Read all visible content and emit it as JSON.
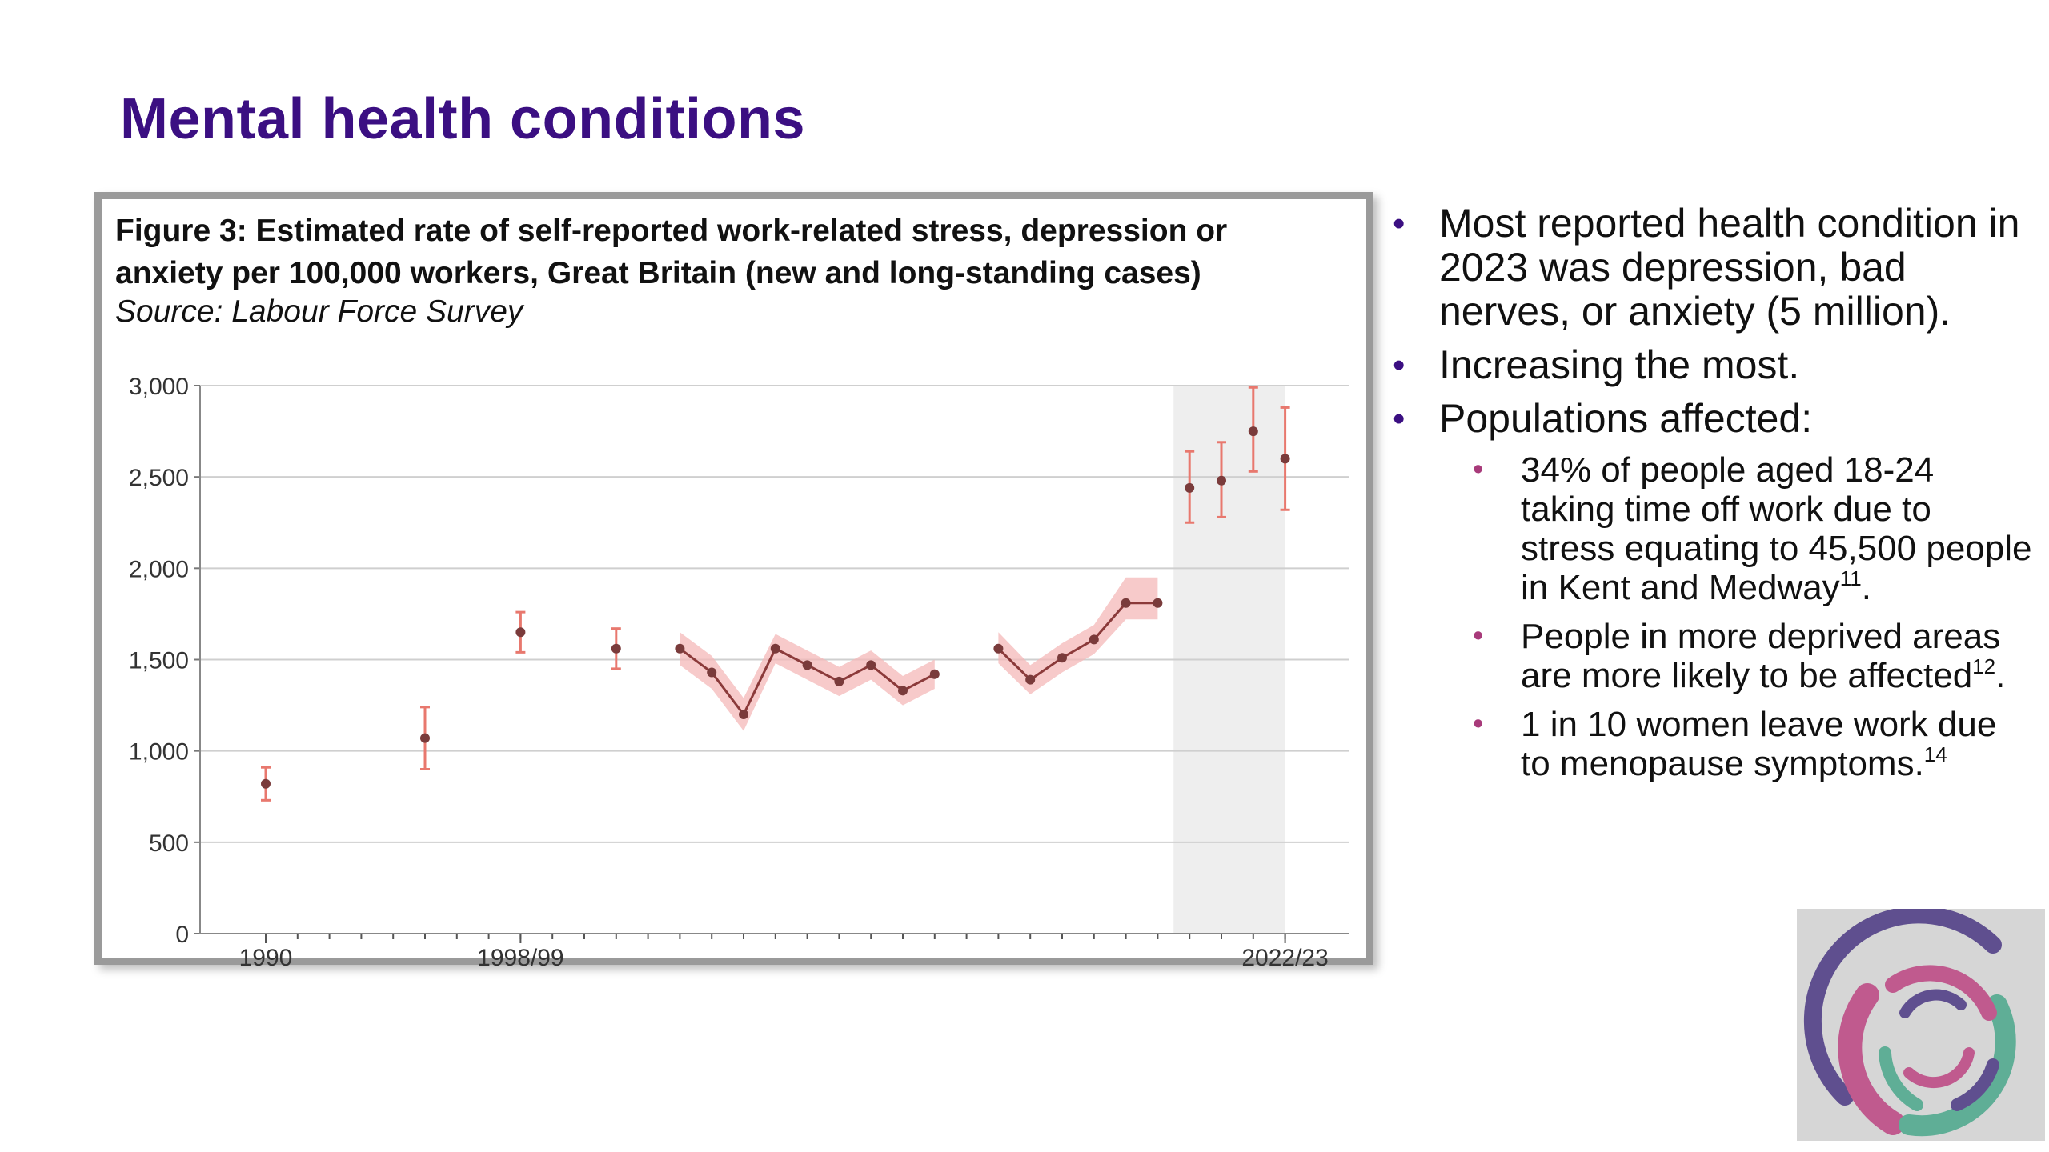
{
  "slide": {
    "title": "Mental health conditions"
  },
  "figure": {
    "title": "Figure 3: Estimated rate of self-reported work-related stress, depression or anxiety per 100,000 workers, Great Britain (new and long-standing cases)",
    "source": "Source: Labour Force Survey"
  },
  "bullets": {
    "items": [
      {
        "text": "Most reported health condition in 2023 was depression, bad nerves, or anxiety (5 million)."
      },
      {
        "text": "Increasing the most."
      },
      {
        "text": "Populations affected:"
      }
    ],
    "sub_items": [
      {
        "text": "34% of people aged 18-24 taking time off work due to stress equating to 45,500 people in Kent and Medway",
        "sup": "11",
        "tail": "."
      },
      {
        "text": "People in more deprived areas are more likely to be affected",
        "sup": "12",
        "tail": "."
      },
      {
        "text": "1 in 10 women leave work due to menopause symptoms.",
        "sup": "14",
        "tail": ""
      }
    ]
  },
  "chart_data": {
    "type": "line",
    "title": "Figure 3: Estimated rate of self-reported work-related stress, depression or anxiety per 100,000 workers, Great Britain (new and long-standing cases)",
    "xlabel": "",
    "ylabel": "",
    "ylim": [
      0,
      3000
    ],
    "yticks": [
      0,
      500,
      1000,
      1500,
      2000,
      2500,
      3000
    ],
    "ytick_labels": [
      "0",
      "500",
      "1,000",
      "1,500",
      "2,000",
      "2,500",
      "3,000"
    ],
    "xlim": [
      1989,
      2024
    ],
    "xtick_labels": [
      {
        "year": 1990,
        "label": "1990"
      },
      {
        "year": 1998,
        "label": "1998/99"
      },
      {
        "year": 2022,
        "label": "2022/23"
      }
    ],
    "minor_ticks_from": 1991,
    "minor_ticks_to": 2022,
    "grid": true,
    "shaded_period": [
      2019,
      2022
    ],
    "colors": {
      "line": "#8b3a3a",
      "band": "#f4b8b8",
      "error": "#e8786e",
      "marker": "#7a3b3b",
      "shade": "#eeeeee",
      "grid": "#cfcfcf"
    },
    "isolated_points": [
      {
        "year": 1990,
        "value": 820,
        "low": 730,
        "high": 910
      },
      {
        "year": 1995,
        "value": 1070,
        "low": 900,
        "high": 1240
      },
      {
        "year": 1998,
        "value": 1650,
        "low": 1540,
        "high": 1760
      },
      {
        "year": 2001,
        "value": 1560,
        "low": 1450,
        "high": 1670
      }
    ],
    "series": [
      {
        "points": [
          {
            "year": 2003,
            "value": 1560,
            "low": 1470,
            "high": 1650
          },
          {
            "year": 2004,
            "value": 1430,
            "low": 1340,
            "high": 1520
          },
          {
            "year": 2005,
            "value": 1200,
            "low": 1110,
            "high": 1290
          },
          {
            "year": 2006,
            "value": 1560,
            "low": 1480,
            "high": 1640
          },
          {
            "year": 2007,
            "value": 1470,
            "low": 1390,
            "high": 1550
          },
          {
            "year": 2008,
            "value": 1380,
            "low": 1300,
            "high": 1460
          },
          {
            "year": 2009,
            "value": 1470,
            "low": 1390,
            "high": 1550
          },
          {
            "year": 2010,
            "value": 1330,
            "low": 1250,
            "high": 1410
          },
          {
            "year": 2011,
            "value": 1420,
            "low": 1340,
            "high": 1500
          }
        ]
      },
      {
        "points": [
          {
            "year": 2013,
            "value": 1560,
            "low": 1480,
            "high": 1650
          },
          {
            "year": 2014,
            "value": 1390,
            "low": 1310,
            "high": 1470
          },
          {
            "year": 2015,
            "value": 1510,
            "low": 1430,
            "high": 1590
          },
          {
            "year": 2016,
            "value": 1610,
            "low": 1530,
            "high": 1690
          },
          {
            "year": 2017,
            "value": 1810,
            "low": 1720,
            "high": 1950
          },
          {
            "year": 2018,
            "value": 1810,
            "low": 1720,
            "high": 1950
          }
        ]
      }
    ],
    "shaded_points": [
      {
        "year": 2019,
        "value": 2440,
        "low": 2250,
        "high": 2640
      },
      {
        "year": 2020,
        "value": 2480,
        "low": 2280,
        "high": 2690
      },
      {
        "year": 2021,
        "value": 2750,
        "low": 2530,
        "high": 2990
      },
      {
        "year": 2022,
        "value": 2600,
        "low": 2320,
        "high": 2880
      }
    ]
  }
}
